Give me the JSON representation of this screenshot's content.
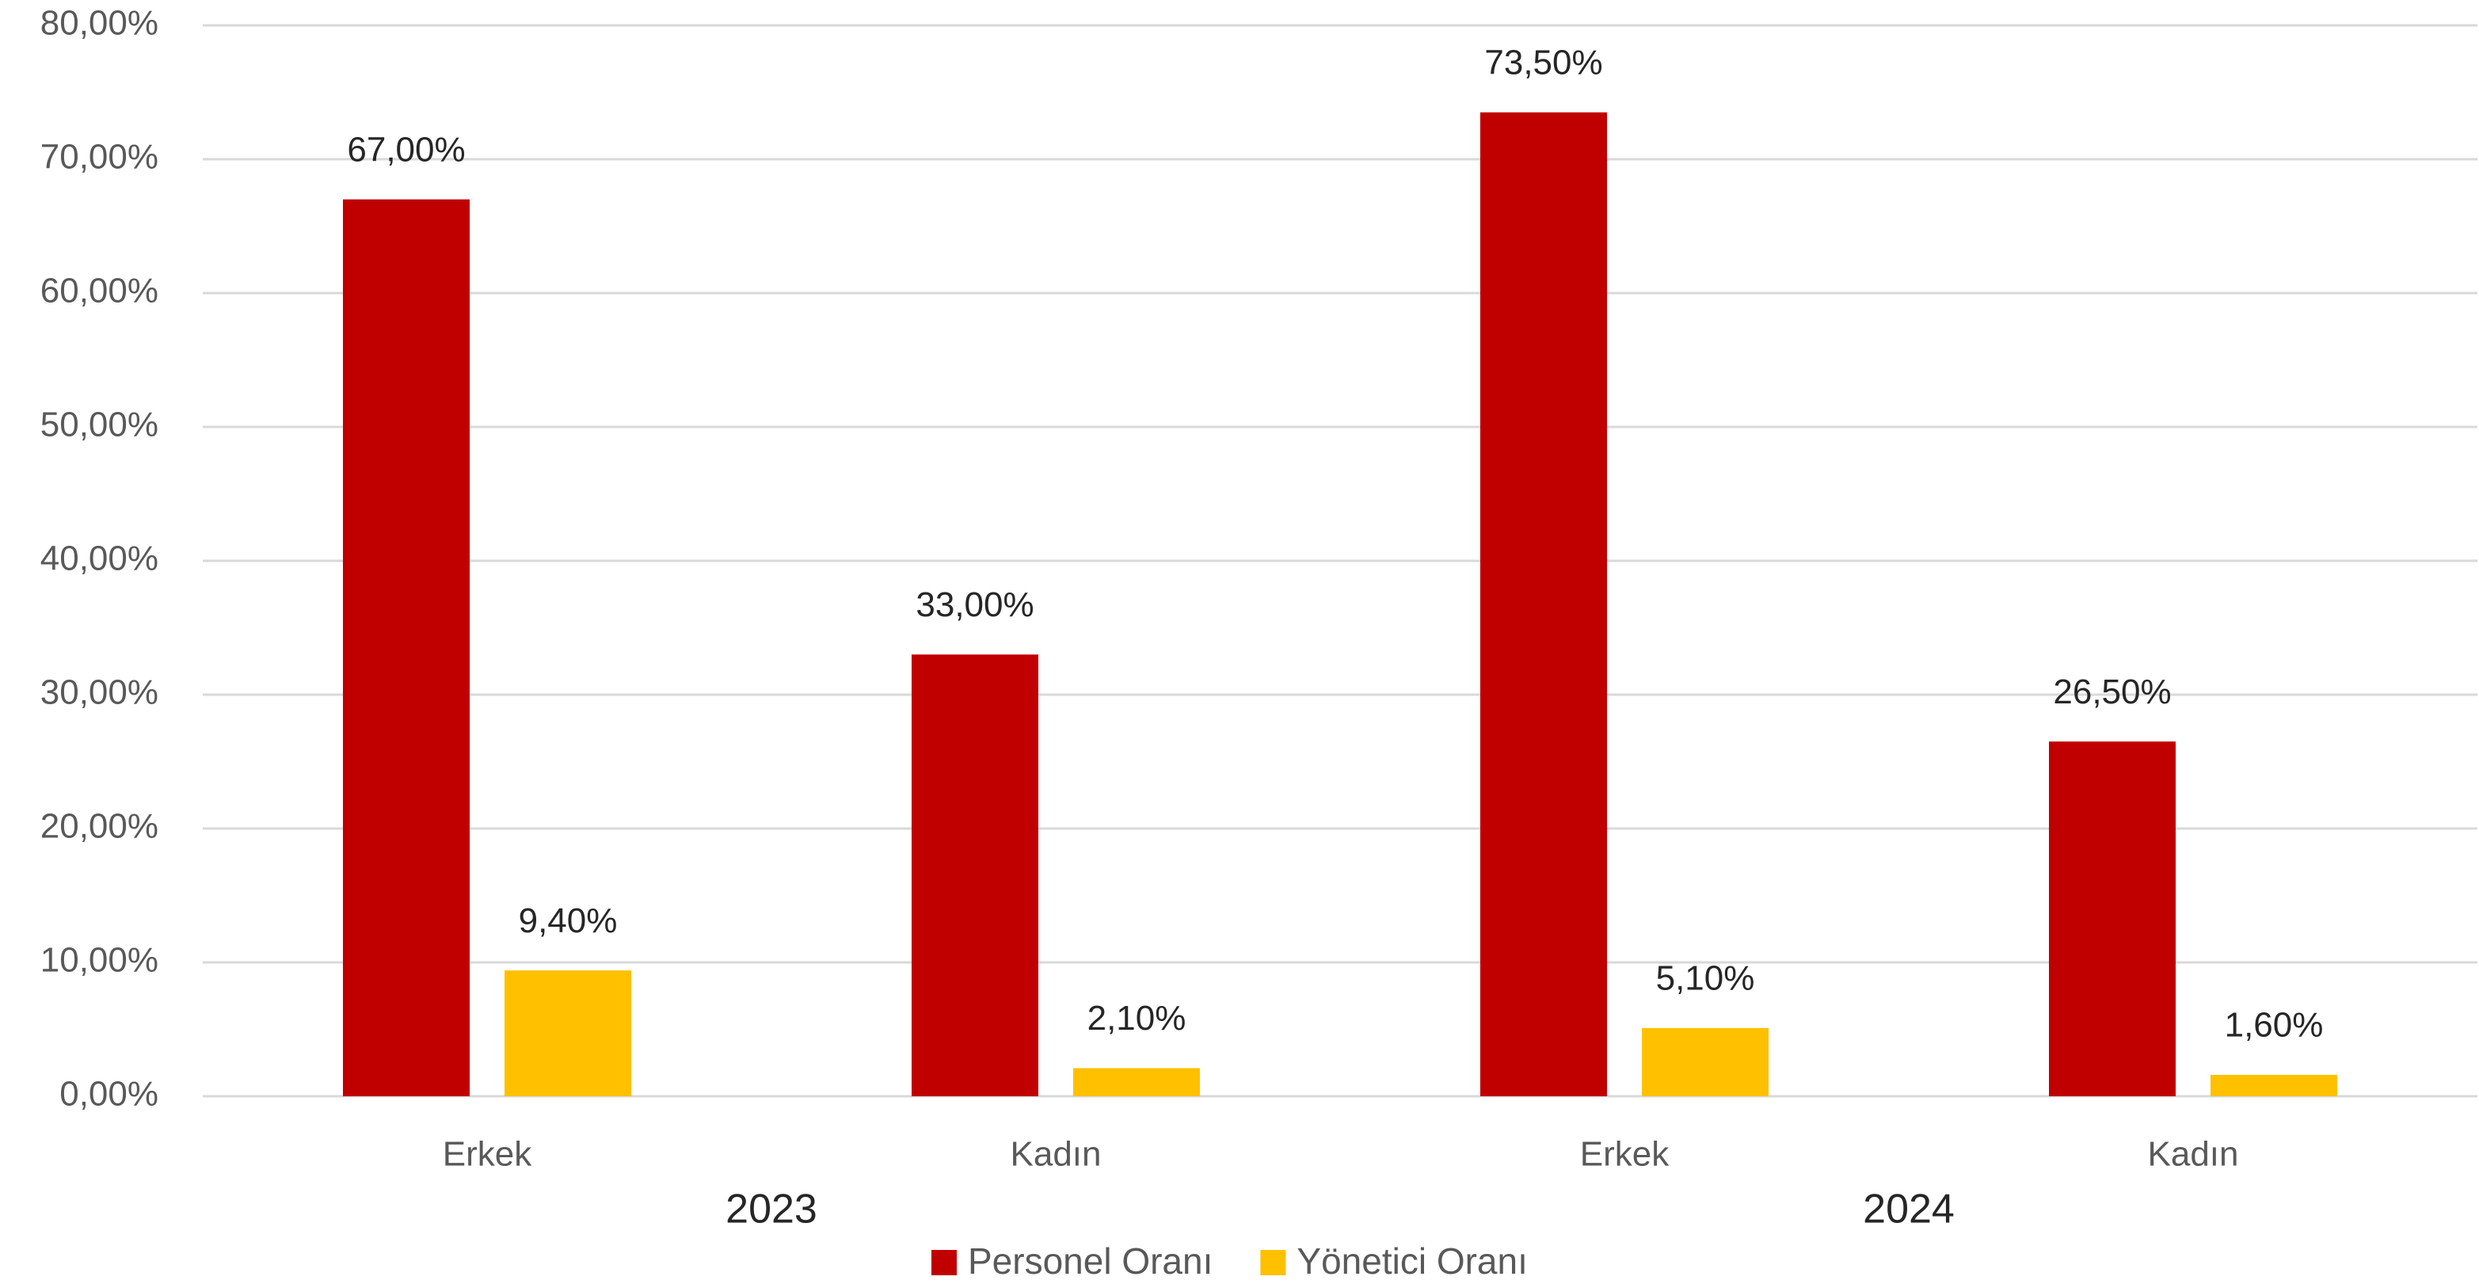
{
  "chart_data": {
    "type": "bar",
    "categories": [
      "Erkek",
      "Kadın",
      "Erkek",
      "Kadın"
    ],
    "category_groups": [
      "2023",
      "2024"
    ],
    "series": [
      {
        "name": "Personel Oranı",
        "color": "#c00000",
        "values": [
          67,
          33,
          73.5,
          26.5
        ],
        "value_labels": [
          "67,00%",
          "33,00%",
          "73,50%",
          "26,50%"
        ]
      },
      {
        "name": "Yönetici Oranı",
        "color": "#ffc000",
        "values": [
          9.4,
          2.1,
          5.1,
          1.6
        ],
        "value_labels": [
          "9,40%",
          "2,10%",
          "5,10%",
          "1,60%"
        ]
      }
    ],
    "ylim": [
      0,
      80
    ],
    "yticks": [
      {
        "value": 0,
        "label": "0,00%"
      },
      {
        "value": 10,
        "label": "10,00%"
      },
      {
        "value": 20,
        "label": "20,00%"
      },
      {
        "value": 30,
        "label": "30,00%"
      },
      {
        "value": 40,
        "label": "40,00%"
      },
      {
        "value": 50,
        "label": "50,00%"
      },
      {
        "value": 60,
        "label": "60,00%"
      },
      {
        "value": 70,
        "label": "70,00%"
      },
      {
        "value": 80,
        "label": "80,00%"
      }
    ],
    "grid": true,
    "legend": "bottom"
  }
}
